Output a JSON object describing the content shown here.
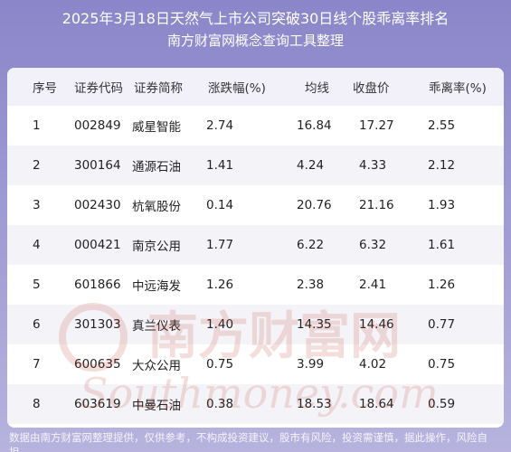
{
  "header": {
    "title": "2025年3月18日天然气上市公司突破30日线个股乖离率排名",
    "subtitle": "南方财富网概念查询工具整理"
  },
  "table": {
    "columns": [
      "序号",
      "证券代码",
      "证券简称",
      "涨跌幅(%)",
      "均线",
      "收盘价",
      "乖离率(%)"
    ],
    "rows": [
      [
        "1",
        "002849",
        "威星智能",
        "2.74",
        "16.84",
        "17.27",
        "2.55"
      ],
      [
        "2",
        "300164",
        "通源石油",
        "1.41",
        "4.24",
        "4.33",
        "2.12"
      ],
      [
        "3",
        "002430",
        "杭氧股份",
        "0.14",
        "20.76",
        "21.16",
        "1.93"
      ],
      [
        "4",
        "000421",
        "南京公用",
        "1.77",
        "6.22",
        "6.32",
        "1.61"
      ],
      [
        "5",
        "601866",
        "中远海发",
        "1.26",
        "2.38",
        "2.41",
        "1.26"
      ],
      [
        "6",
        "301303",
        "真兰仪表",
        "1.40",
        "14.35",
        "14.46",
        "0.77"
      ],
      [
        "7",
        "600635",
        "大众公用",
        "0.75",
        "3.99",
        "4.02",
        "0.75"
      ],
      [
        "8",
        "603619",
        "中曼石油",
        "0.38",
        "18.53",
        "18.64",
        "0.59"
      ]
    ]
  },
  "watermark": {
    "cn": "南方财富网",
    "en": "Southmoney.com"
  },
  "footer": {
    "disclaimer": "数据由南方财富网整理提供，仅供参考，不构成投资建议，股市有风险，投资需谨慎，据此操作，风险自担。"
  },
  "colors": {
    "background_top": "#8a86c9",
    "background_bottom": "#b7b3de",
    "header_row": "#f2f1fa",
    "alt_row": "#f4f4f8",
    "watermark": "#c0392b"
  }
}
